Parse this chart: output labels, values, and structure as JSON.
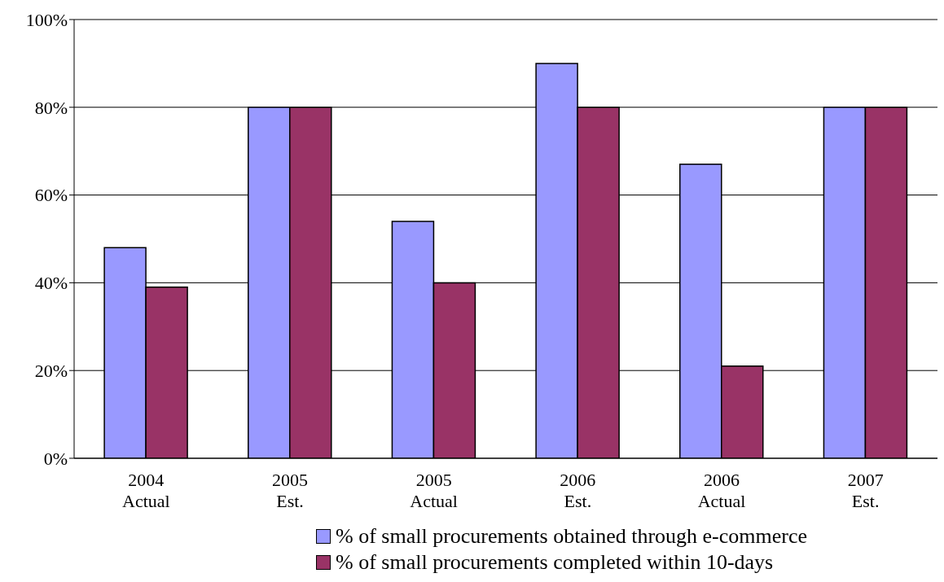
{
  "chart_data": {
    "type": "bar",
    "categories": [
      "2004\nActual",
      "2005\nEst.",
      "2005\nActual",
      "2006\nEst.",
      "2006\nActual",
      "2007\nEst."
    ],
    "series": [
      {
        "name": "% of small procurements obtained through e-commerce",
        "color": "#9999ff",
        "values": [
          48,
          80,
          54,
          90,
          67,
          80
        ]
      },
      {
        "name": "% of small procurements completed within 10-days",
        "color": "#993366",
        "values": [
          39,
          80,
          40,
          80,
          21,
          80
        ]
      }
    ],
    "ylim": [
      0,
      100
    ],
    "yticks": [
      {
        "value": 0,
        "label": "0%"
      },
      {
        "value": 20,
        "label": "20%"
      },
      {
        "value": 40,
        "label": "40%"
      },
      {
        "value": 60,
        "label": "60%"
      },
      {
        "value": 80,
        "label": "80%"
      },
      {
        "value": 100,
        "label": "100%"
      }
    ],
    "grid": "y",
    "legend": "bottom"
  }
}
